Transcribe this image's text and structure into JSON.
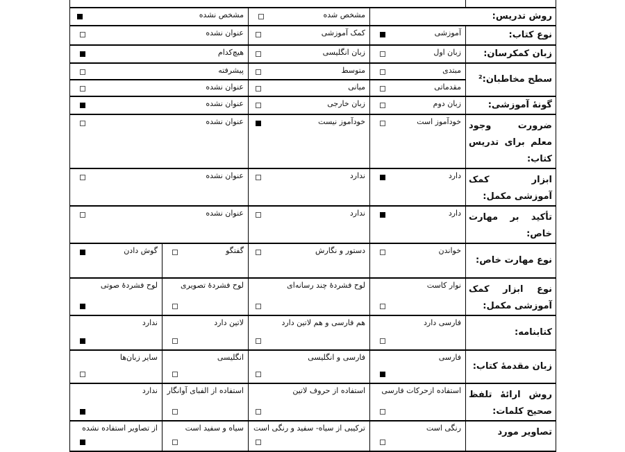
{
  "form": {
    "rows": [
      {
        "label": "",
        "options": []
      },
      {
        "label": "روش تدریس:",
        "label_span": 2,
        "options": [
          {
            "text": "مشخص شده",
            "checked": false
          },
          {
            "text": "مشخص نشده",
            "checked": true,
            "span": 2
          }
        ]
      },
      {
        "label": "نوع کتاب:",
        "options": [
          {
            "text": "آموزشی",
            "checked": true
          },
          {
            "text": "کمک آموزشی",
            "checked": false
          },
          {
            "text": "عنوان نشده",
            "checked": false,
            "span": 2
          }
        ]
      },
      {
        "label": "زبان کمکرسان:",
        "options": [
          {
            "text": "زبان اول",
            "checked": false
          },
          {
            "text": "زبان انگلیسی",
            "checked": false
          },
          {
            "text": "هیچ‌کدام",
            "checked": true,
            "span": 2
          }
        ]
      },
      {
        "label": "سطح مخاطبان:²",
        "label_rowspan": 2,
        "options": [
          {
            "text": "مبتدی",
            "checked": false
          },
          {
            "text": "متوسط",
            "checked": false
          },
          {
            "text": "پیشرفته",
            "checked": false,
            "span": 2
          }
        ]
      },
      {
        "label": null,
        "options": [
          {
            "text": "مقدماتی",
            "checked": false
          },
          {
            "text": "میانی",
            "checked": false
          },
          {
            "text": "عنوان نشده",
            "checked": false,
            "span": 2
          }
        ]
      },
      {
        "label": "گونهٔ آموزشی:",
        "options": [
          {
            "text": "زبان دوم",
            "checked": false
          },
          {
            "text": "زبان خارجی",
            "checked": false
          },
          {
            "text": "عنوان نشده",
            "checked": true,
            "span": 2
          }
        ]
      },
      {
        "label": "ضرورت وجود معلم برای تدریس کتاب:",
        "options": [
          {
            "text": "خودآموز است",
            "checked": false
          },
          {
            "text": "خودآموز نیست",
            "checked": true
          },
          {
            "text": "عنوان نشده",
            "checked": false,
            "span": 2
          }
        ]
      },
      {
        "label": "ابزار کمک آموزشی مکمل:",
        "options": [
          {
            "text": "دارد",
            "checked": true
          },
          {
            "text": "ندارد",
            "checked": false
          },
          {
            "text": "عنوان نشده",
            "checked": false,
            "span": 2
          }
        ]
      },
      {
        "label": "تأکید بر مهارت خاص:",
        "options": [
          {
            "text": "دارد",
            "checked": true
          },
          {
            "text": "ندارد",
            "checked": false
          },
          {
            "text": "عنوان نشده",
            "checked": false,
            "span": 2
          }
        ]
      },
      {
        "label": "نوع مهارت خاص:",
        "options": [
          {
            "text": "خواندن",
            "checked": false
          },
          {
            "text": "دستور و نگارش",
            "checked": false
          },
          {
            "text": "گفتگو",
            "checked": false
          },
          {
            "text": "گوش دادن",
            "checked": true
          }
        ]
      },
      {
        "label": "نوع ابزار کمک آموزشی مکمل:",
        "checkbox_below": true,
        "options": [
          {
            "text": "نوار کاست",
            "checked": false
          },
          {
            "text": "لوح فشردهٔ چند رسانه‌ای",
            "checked": false
          },
          {
            "text": "لوح فشردهٔ تصویری",
            "checked": false
          },
          {
            "text": "لوح فشردهٔ صوتی",
            "checked": true
          }
        ]
      },
      {
        "label": "کتابنامه:",
        "checkbox_below": true,
        "options": [
          {
            "text": "فارسی دارد",
            "checked": false
          },
          {
            "text": "هم فارسی و هم لاتین دارد",
            "checked": false
          },
          {
            "text": "لاتین دارد",
            "checked": false
          },
          {
            "text": "ندارد",
            "checked": true
          }
        ]
      },
      {
        "label": "زبان مقدمهٔ کتاب:",
        "checkbox_below": true,
        "options": [
          {
            "text": "فارسی",
            "checked": true
          },
          {
            "text": "فارسی و انگلیسی",
            "checked": false
          },
          {
            "text": "انگلیسی",
            "checked": false
          },
          {
            "text": "سایر زبان‌ها",
            "checked": false
          }
        ]
      },
      {
        "label": "روش ارائهٔ تلفظ صحیح کلمات:",
        "checkbox_below": true,
        "options": [
          {
            "text": "استفاده ازحرکات فارسی",
            "checked": false
          },
          {
            "text": "استفاده از حروف لاتین",
            "checked": false
          },
          {
            "text": "استفاده از الفبای آوانگار",
            "checked": false
          },
          {
            "text": "ندارد",
            "checked": true
          }
        ]
      },
      {
        "label": "تصاویر مورد",
        "checkbox_below": true,
        "options": [
          {
            "text": "رنگی است",
            "checked": false
          },
          {
            "text": "ترکیبی از سیاه- سفید و رنگی است",
            "checked": false
          },
          {
            "text": "سیاه و سفید است",
            "checked": false
          },
          {
            "text": "از تصاویر استفاده نشده",
            "checked": true
          }
        ]
      }
    ]
  }
}
